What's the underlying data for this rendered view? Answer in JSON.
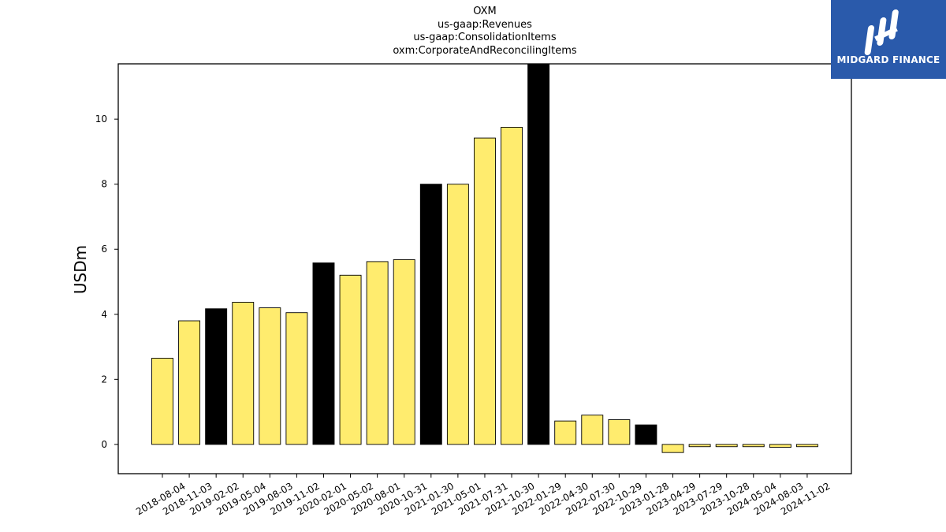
{
  "chart_data": {
    "type": "bar",
    "title_lines": [
      "OXM",
      "us-gaap:Revenues",
      "us-gaap:ConsolidationItems",
      "oxm:CorporateAndReconcilingItems"
    ],
    "ylabel": "USDm",
    "xlabel": "",
    "ylim": [
      -0.9,
      11.7
    ],
    "yticks": [
      0,
      2,
      4,
      6,
      8,
      10
    ],
    "grid": false,
    "categories": [
      "2018-08-04",
      "2018-11-03",
      "2019-02-02",
      "2019-05-04",
      "2019-08-03",
      "2019-11-02",
      "2020-02-01",
      "2020-05-02",
      "2020-08-01",
      "2020-10-31",
      "2021-01-30",
      "2021-05-01",
      "2021-07-31",
      "2021-10-30",
      "2022-01-29",
      "2022-04-30",
      "2022-07-30",
      "2022-10-29",
      "2023-01-28",
      "2023-04-29",
      "2023-07-29",
      "2023-10-28",
      "2024-05-04",
      "2024-08-03",
      "2024-11-02"
    ],
    "values": [
      2.65,
      3.8,
      4.17,
      4.37,
      4.2,
      4.05,
      5.58,
      5.2,
      5.62,
      5.68,
      8.0,
      8.0,
      9.42,
      9.75,
      11.7,
      0.72,
      0.9,
      0.76,
      0.6,
      -0.25,
      -0.07,
      -0.07,
      -0.07,
      -0.09,
      -0.07
    ],
    "bar_colors": [
      "#ffec6e",
      "#ffec6e",
      "#000000",
      "#ffec6e",
      "#ffec6e",
      "#ffec6e",
      "#000000",
      "#ffec6e",
      "#ffec6e",
      "#ffec6e",
      "#000000",
      "#ffec6e",
      "#ffec6e",
      "#ffec6e",
      "#000000",
      "#ffec6e",
      "#ffec6e",
      "#ffec6e",
      "#000000",
      "#ffec6e",
      "#ffec6e",
      "#ffec6e",
      "#ffec6e",
      "#ffec6e",
      "#ffec6e"
    ]
  },
  "logo": {
    "text": "MIDGARD FINANCE",
    "background": "#2a5aab",
    "icon": "midgard-logo-icon"
  }
}
